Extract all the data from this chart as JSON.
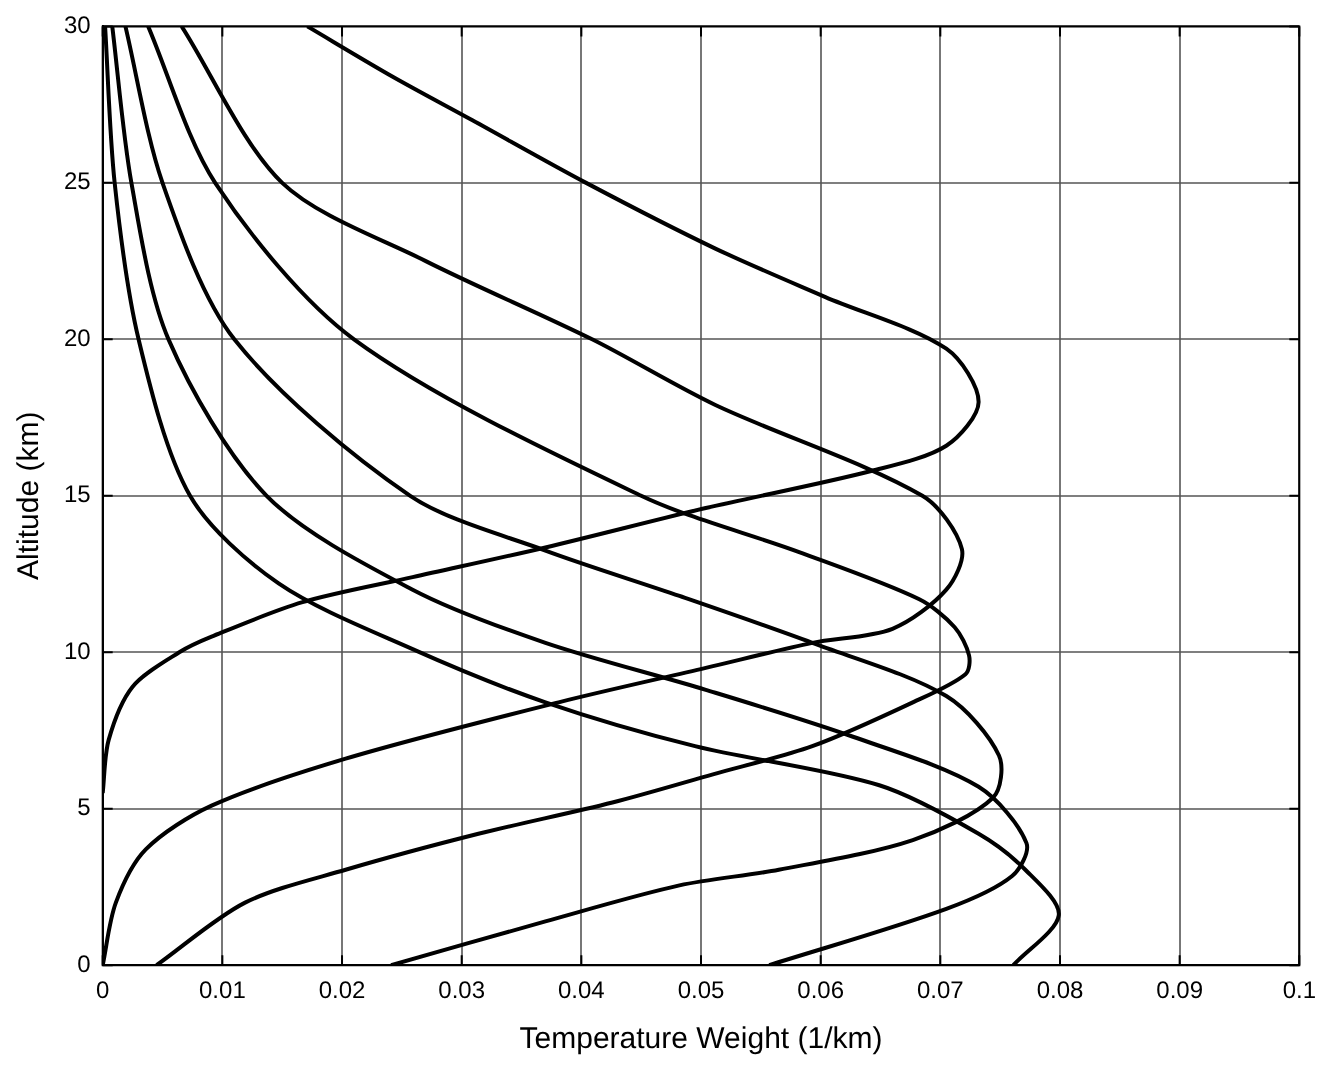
{
  "chart_data": {
    "type": "line",
    "xlabel": "Temperature Weight (1/km)",
    "ylabel": "Altitude (km)",
    "xlim": [
      0,
      0.1
    ],
    "xticks": [
      0,
      0.01,
      0.02,
      0.03,
      0.04,
      0.05,
      0.06,
      0.07,
      0.08,
      0.09,
      0.1
    ],
    "ylim": [
      0,
      30
    ],
    "yticks": [
      0,
      5,
      10,
      15,
      20,
      25,
      30
    ],
    "grid": true,
    "legend": false,
    "line_style": "solid",
    "series": [
      {
        "color": "#000000",
        "x": [
          0,
          0.0005,
          0.0025,
          0.0064,
          0.0091,
          0.0167,
          0.0259,
          0.037,
          0.0503,
          0.0643,
          0.0705,
          0.0732,
          0.0705,
          0.0604,
          0.0512,
          0.0404,
          0.0309,
          0.0242,
          0.0171
        ],
        "values": [
          5.5,
          7.2,
          8.9,
          10.0,
          10.5,
          11.6,
          12.4,
          13.35,
          14.6,
          15.8,
          16.6,
          18.0,
          19.7,
          21.35,
          22.9,
          25.0,
          27.0,
          28.4,
          30
        ]
      },
      {
        "color": "#000000",
        "x": [
          0,
          0.0011,
          0.0036,
          0.0091,
          0.0203,
          0.0381,
          0.0504,
          0.0593,
          0.066,
          0.0705,
          0.0718,
          0.0685,
          0.0512,
          0.0409,
          0.027,
          0.015,
          0.0066
        ],
        "values": [
          0,
          2.0,
          3.7,
          5.1,
          6.6,
          8.4,
          9.5,
          10.3,
          10.75,
          12.0,
          13.3,
          15.0,
          17.9,
          20,
          22.5,
          25,
          30
        ]
      },
      {
        "color": "#000000",
        "x": [
          0.0045,
          0.0119,
          0.0203,
          0.0314,
          0.0426,
          0.051,
          0.0593,
          0.0677,
          0.0721,
          0.0724,
          0.0712,
          0.0682,
          0.0582,
          0.045,
          0.021,
          0.0094,
          0.0038
        ],
        "values": [
          0,
          2.0,
          3.05,
          4.2,
          5.2,
          6.1,
          7.0,
          8.4,
          9.3,
          9.9,
          10.8,
          11.7,
          13.2,
          15,
          20,
          25,
          30
        ]
      },
      {
        "color": "#000000",
        "x": [
          0.0241,
          0.037,
          0.0482,
          0.0565,
          0.0677,
          0.0744,
          0.0749,
          0.0705,
          0.0593,
          0.0482,
          0.037,
          0.0257,
          0.011,
          0.005,
          0.0019
        ],
        "values": [
          0,
          1.4,
          2.55,
          3.05,
          4.0,
          5.35,
          6.7,
          8.6,
          10.3,
          11.8,
          13.25,
          15,
          20,
          25,
          30
        ]
      },
      {
        "color": "#000000",
        "x": [
          0.0557,
          0.0705,
          0.076,
          0.0772,
          0.0732,
          0.0627,
          0.0504,
          0.037,
          0.0259,
          0.0137,
          0.0055,
          0.0024,
          0.0008
        ],
        "values": [
          0,
          1.8,
          2.85,
          3.9,
          5.7,
          7.3,
          8.8,
          10.3,
          12.0,
          15,
          20,
          25,
          30
        ]
      },
      {
        "color": "#000000",
        "x": [
          0.0761,
          0.0799,
          0.0771,
          0.0732,
          0.0649,
          0.0495,
          0.037,
          0.0259,
          0.0147,
          0.0073,
          0.003,
          0.001,
          0.0002
        ],
        "values": [
          0,
          1.6,
          3.05,
          4.2,
          5.75,
          7.0,
          8.4,
          10.1,
          12.2,
          15,
          20,
          25,
          30
        ]
      }
    ]
  }
}
